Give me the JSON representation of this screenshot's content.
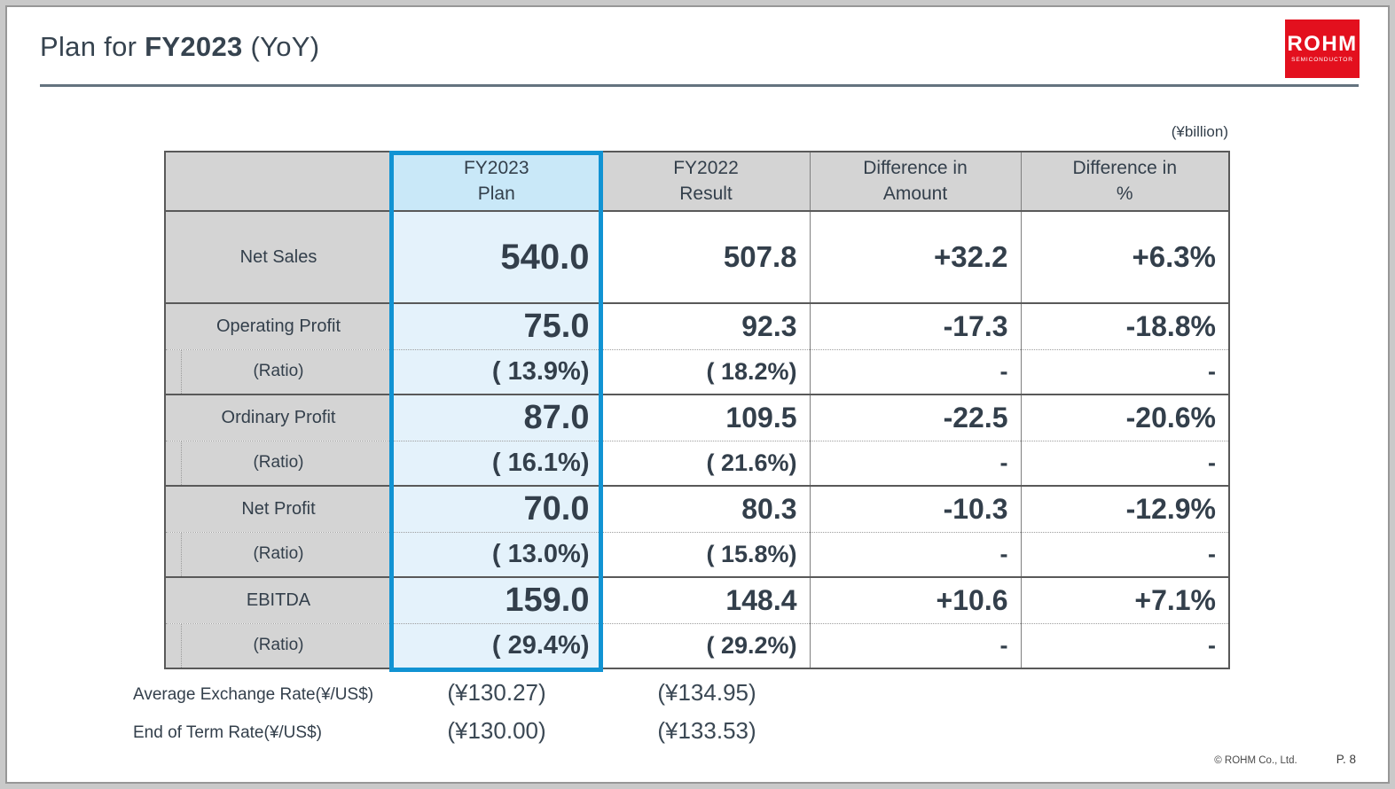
{
  "slide_title": {
    "prefix": "Plan for ",
    "year": "FY2023",
    "suffix": " (YoY)"
  },
  "logo": {
    "name": "ROHM",
    "tagline": "SEMICONDUCTOR"
  },
  "unit_note": "(¥billion)",
  "table": {
    "header": {
      "blank": "",
      "fy2023": {
        "line1": "FY2023",
        "line2": "Plan"
      },
      "fy2022": {
        "line1": "FY2022",
        "line2": "Result"
      },
      "diff_amount": {
        "line1": "Difference in",
        "line2": "Amount"
      },
      "diff_pct": {
        "line1": "Difference in",
        "line2": "%"
      }
    },
    "rows": [
      {
        "label": "Net Sales",
        "fy2023": "540.0",
        "fy2022": "507.8",
        "diff_amount": "+32.2",
        "diff_pct": "+6.3%"
      },
      {
        "label": "Operating Profit",
        "fy2023": "75.0",
        "fy2022": "92.3",
        "diff_amount": "-17.3",
        "diff_pct": "-18.8%"
      },
      {
        "label": "(Ratio)",
        "fy2023": "( 13.9%)",
        "fy2022": "( 18.2%)",
        "diff_amount": "-",
        "diff_pct": "-"
      },
      {
        "label": "Ordinary Profit",
        "fy2023": "87.0",
        "fy2022": "109.5",
        "diff_amount": "-22.5",
        "diff_pct": "-20.6%"
      },
      {
        "label": "(Ratio)",
        "fy2023": "( 16.1%)",
        "fy2022": "( 21.6%)",
        "diff_amount": "-",
        "diff_pct": "-"
      },
      {
        "label": "Net Profit",
        "fy2023": "70.0",
        "fy2022": "80.3",
        "diff_amount": "-10.3",
        "diff_pct": "-12.9%"
      },
      {
        "label": "(Ratio)",
        "fy2023": "( 13.0%)",
        "fy2022": "( 15.8%)",
        "diff_amount": "-",
        "diff_pct": "-"
      },
      {
        "label": "EBITDA",
        "fy2023": "159.0",
        "fy2022": "148.4",
        "diff_amount": "+10.6",
        "diff_pct": "+7.1%"
      },
      {
        "label": "(Ratio)",
        "fy2023": "( 29.4%)",
        "fy2022": "( 29.2%)",
        "diff_amount": "-",
        "diff_pct": "-"
      }
    ]
  },
  "exchange_rates": [
    {
      "label": "Average Exchange Rate(¥/US$)",
      "fy2023": "(¥130.27)",
      "fy2022": "(¥134.95)"
    },
    {
      "label": "End of Term Rate(¥/US$)",
      "fy2023": "(¥130.00)",
      "fy2022": "(¥133.53)"
    }
  ],
  "footer": {
    "copyright": "© ROHM Co., Ltd.",
    "page": "P. 8"
  },
  "colors": {
    "highlight_border": "#1193d3",
    "highlight_fill": "#e4f2fb",
    "highlight_header_fill": "#c9e8f8",
    "header_gray": "#d4d4d4",
    "rohm_red": "#e3101e",
    "text_dark": "#333f4b"
  }
}
